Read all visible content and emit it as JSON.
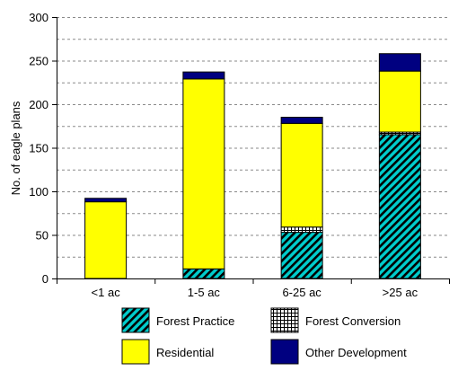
{
  "chart_data": {
    "type": "bar",
    "stacked": true,
    "categories": [
      "<1 ac",
      "1-5 ac",
      "6-25 ac",
      ">25 ac"
    ],
    "series": [
      {
        "name": "Forest Practice",
        "values": [
          0,
          11,
          53,
          165
        ],
        "pattern": "diagonal-hatch",
        "color": "#00CCCC"
      },
      {
        "name": "Forest Conversion",
        "values": [
          0,
          0,
          6,
          3
        ],
        "pattern": "grid",
        "color": "#ffffff"
      },
      {
        "name": "Residential",
        "values": [
          88,
          218,
          119,
          70
        ],
        "pattern": "solid",
        "color": "#FFFF00"
      },
      {
        "name": "Other Development",
        "values": [
          4,
          8,
          7,
          20
        ],
        "pattern": "solid",
        "color": "#000080"
      }
    ],
    "ylabel": "No. of eagle plans",
    "xlabel": "",
    "ylim": [
      0,
      300
    ],
    "yticks": [
      0,
      50,
      100,
      150,
      200,
      250,
      300
    ],
    "grid": "dashed horizontal",
    "legend_position": "bottom"
  }
}
